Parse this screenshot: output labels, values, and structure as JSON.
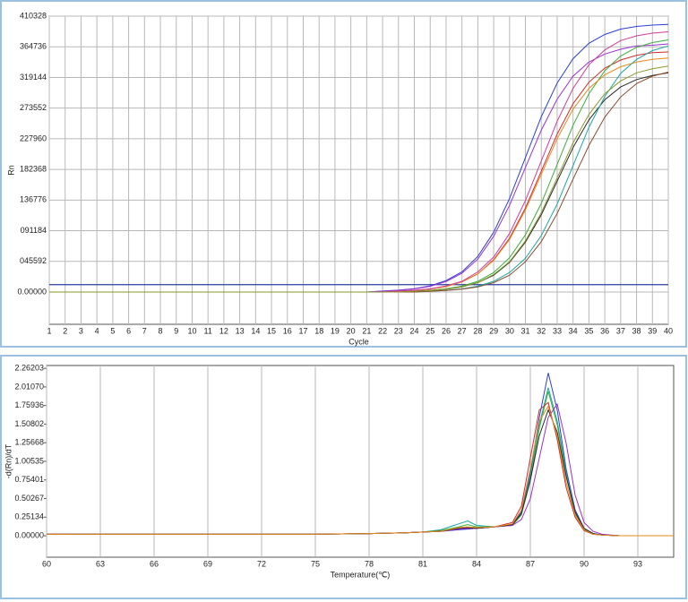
{
  "chart_data": [
    {
      "type": "line",
      "x_label": "Cycle",
      "y_label": "Rn",
      "x": [
        1,
        2,
        3,
        4,
        5,
        6,
        7,
        8,
        9,
        10,
        11,
        12,
        13,
        14,
        15,
        16,
        17,
        18,
        19,
        20,
        21,
        22,
        23,
        24,
        25,
        26,
        27,
        28,
        29,
        30,
        31,
        32,
        33,
        34,
        35,
        36,
        37,
        38,
        39,
        40
      ],
      "xlim": [
        1,
        40
      ],
      "xticks": [
        1,
        2,
        3,
        4,
        5,
        6,
        7,
        8,
        9,
        10,
        11,
        12,
        13,
        14,
        15,
        16,
        17,
        18,
        19,
        20,
        21,
        22,
        23,
        24,
        25,
        26,
        27,
        28,
        29,
        30,
        31,
        32,
        33,
        34,
        35,
        36,
        37,
        38,
        39,
        40
      ],
      "ylim": [
        -48000,
        410328
      ],
      "yticks": [
        {
          "value": 0,
          "label": "0.00000"
        },
        {
          "value": 45592,
          "label": "045592"
        },
        {
          "value": 91184,
          "label": "091184"
        },
        136776,
        182368,
        227960,
        273552,
        319144,
        364736,
        410328
      ],
      "grid": "both",
      "threshold": 11000,
      "threshold_color": "#2a3fa0",
      "series": [
        {
          "color": "#2b3fd6",
          "values": [
            0,
            0,
            0,
            0,
            0,
            0,
            0,
            0,
            0,
            0,
            0,
            0,
            0,
            0,
            0,
            0,
            0,
            0,
            0,
            0,
            0,
            1400,
            2700,
            5000,
            9200,
            17000,
            30000,
            53000,
            89000,
            139000,
            200000,
            261000,
            311000,
            347000,
            370000,
            383000,
            391000,
            395000,
            397000,
            398000
          ]
        },
        {
          "color": "#9b2fd0",
          "values": [
            0,
            0,
            0,
            0,
            0,
            0,
            0,
            0,
            0,
            0,
            0,
            0,
            0,
            0,
            0,
            0,
            0,
            0,
            0,
            0,
            0,
            1300,
            2500,
            4600,
            8500,
            15500,
            28000,
            49000,
            83000,
            129000,
            185000,
            241000,
            287000,
            321000,
            342000,
            354000,
            361000,
            366000,
            367000,
            369000
          ]
        },
        {
          "color": "#d42a2a",
          "values": [
            0,
            0,
            0,
            0,
            0,
            0,
            0,
            0,
            0,
            0,
            0,
            0,
            0,
            0,
            0,
            0,
            0,
            0,
            0,
            0,
            0,
            0,
            1300,
            2400,
            4500,
            8300,
            15000,
            27000,
            48000,
            80000,
            125000,
            180000,
            235000,
            280000,
            312000,
            333000,
            345000,
            352000,
            356000,
            357000
          ]
        },
        {
          "color": "#3cae3c",
          "values": [
            0,
            0,
            0,
            0,
            0,
            0,
            0,
            0,
            0,
            0,
            0,
            0,
            0,
            0,
            0,
            0,
            0,
            0,
            0,
            0,
            0,
            0,
            0,
            1400,
            2500,
            4700,
            8700,
            16000,
            29000,
            51000,
            85000,
            132000,
            190000,
            248000,
            295000,
            329000,
            351000,
            364000,
            371000,
            375000
          ]
        },
        {
          "color": "#2a2a2a",
          "values": [
            0,
            0,
            0,
            0,
            0,
            0,
            0,
            0,
            0,
            0,
            0,
            0,
            0,
            0,
            0,
            0,
            0,
            0,
            0,
            0,
            0,
            0,
            0,
            1200,
            2200,
            4100,
            7600,
            14000,
            25000,
            44000,
            74000,
            115000,
            165000,
            215000,
            256000,
            286000,
            305000,
            316000,
            322000,
            326000
          ]
        },
        {
          "color": "#e88a1a",
          "values": [
            0,
            0,
            0,
            0,
            0,
            0,
            0,
            0,
            0,
            0,
            0,
            0,
            0,
            0,
            0,
            0,
            0,
            0,
            0,
            0,
            0,
            0,
            1300,
            2300,
            4300,
            8000,
            15000,
            27000,
            47000,
            78000,
            122000,
            175000,
            228000,
            272000,
            303000,
            323000,
            335000,
            342000,
            346000,
            348000
          ]
        },
        {
          "color": "#1aa6a6",
          "values": [
            0,
            0,
            0,
            0,
            0,
            0,
            0,
            0,
            0,
            0,
            0,
            0,
            0,
            0,
            0,
            0,
            0,
            0,
            0,
            0,
            0,
            0,
            0,
            0,
            1300,
            2500,
            4600,
            8600,
            16000,
            29000,
            50000,
            84000,
            131000,
            188000,
            245000,
            291000,
            325000,
            346000,
            359000,
            366000
          ]
        },
        {
          "color": "#8a4a2a",
          "values": [
            0,
            0,
            0,
            0,
            0,
            0,
            0,
            0,
            0,
            0,
            0,
            0,
            0,
            0,
            0,
            0,
            0,
            0,
            0,
            0,
            0,
            0,
            0,
            0,
            1200,
            2200,
            4200,
            7700,
            14000,
            25000,
            45000,
            75000,
            117000,
            168000,
            218000,
            260000,
            290000,
            310000,
            321000,
            327000
          ]
        },
        {
          "color": "#d13a9a",
          "values": [
            0,
            0,
            0,
            0,
            0,
            0,
            0,
            0,
            0,
            0,
            0,
            0,
            0,
            0,
            0,
            0,
            0,
            0,
            0,
            0,
            0,
            0,
            1400,
            2600,
            4800,
            9000,
            16000,
            30000,
            52000,
            87000,
            136000,
            195000,
            254000,
            303000,
            338000,
            360000,
            374000,
            381000,
            385000,
            387000
          ]
        },
        {
          "color": "#8a9a2a",
          "values": [
            0,
            0,
            0,
            0,
            0,
            0,
            0,
            0,
            0,
            0,
            0,
            0,
            0,
            0,
            0,
            0,
            0,
            0,
            0,
            0,
            0,
            0,
            0,
            1200,
            2300,
            4300,
            7800,
            14000,
            26000,
            45000,
            76000,
            118000,
            170000,
            222000,
            264000,
            295000,
            314000,
            326000,
            332000,
            336000
          ]
        }
      ]
    },
    {
      "type": "line",
      "x_label": "Temperature(℃)",
      "y_label": "-d(Rn)/dT",
      "x": [
        60,
        65,
        70,
        75,
        78,
        80,
        81,
        82,
        83,
        83.5,
        84,
        85,
        86,
        86.5,
        87,
        87.5,
        88,
        88.5,
        89,
        89.5,
        90,
        90.5,
        91,
        92,
        93,
        95
      ],
      "xlim": [
        60,
        95
      ],
      "xticks": [
        60,
        63,
        66,
        69,
        72,
        75,
        78,
        81,
        84,
        87,
        90,
        93
      ],
      "ylim": [
        -0.29,
        2.3
      ],
      "yticks": [
        {
          "value": 0,
          "label": "0.00000"
        },
        0.25134,
        0.50267,
        0.75401,
        1.00535,
        1.25668,
        1.50802,
        1.75936,
        {
          "value": 2.0107,
          "label": "2.01070"
        },
        2.26203
      ],
      "grid": "x",
      "series": [
        {
          "color": "#2b3fd6",
          "values": [
            0.02,
            0.02,
            0.02,
            0.02,
            0.03,
            0.04,
            0.05,
            0.06,
            0.08,
            0.09,
            0.1,
            0.12,
            0.15,
            0.32,
            0.85,
            1.6,
            2.2,
            1.7,
            0.9,
            0.35,
            0.1,
            0.03,
            0.01,
            0,
            0,
            0
          ]
        },
        {
          "color": "#1aa6a6",
          "values": [
            0.02,
            0.02,
            0.02,
            0.02,
            0.03,
            0.04,
            0.05,
            0.08,
            0.16,
            0.2,
            0.14,
            0.12,
            0.15,
            0.3,
            0.8,
            1.5,
            2.0,
            1.55,
            0.85,
            0.32,
            0.1,
            0.03,
            0.01,
            0,
            0,
            0
          ]
        },
        {
          "color": "#3cae3c",
          "values": [
            0.02,
            0.02,
            0.02,
            0.02,
            0.03,
            0.04,
            0.05,
            0.07,
            0.12,
            0.15,
            0.12,
            0.12,
            0.14,
            0.28,
            0.75,
            1.45,
            1.95,
            1.5,
            0.82,
            0.3,
            0.09,
            0.03,
            0.01,
            0,
            0,
            0
          ]
        },
        {
          "color": "#d42a2a",
          "values": [
            0.02,
            0.02,
            0.02,
            0.02,
            0.03,
            0.04,
            0.05,
            0.06,
            0.09,
            0.1,
            0.1,
            0.12,
            0.18,
            0.4,
            1.05,
            1.7,
            1.8,
            1.3,
            0.65,
            0.25,
            0.07,
            0.02,
            0.01,
            0,
            0,
            0
          ]
        },
        {
          "color": "#9b2fd0",
          "values": [
            0.02,
            0.02,
            0.02,
            0.02,
            0.03,
            0.04,
            0.05,
            0.06,
            0.09,
            0.1,
            0.1,
            0.12,
            0.14,
            0.22,
            0.5,
            1.05,
            1.6,
            1.78,
            1.25,
            0.55,
            0.18,
            0.06,
            0.02,
            0,
            0,
            0
          ]
        },
        {
          "color": "#2a2a2a",
          "values": [
            0.02,
            0.02,
            0.02,
            0.02,
            0.03,
            0.04,
            0.05,
            0.06,
            0.1,
            0.11,
            0.1,
            0.12,
            0.15,
            0.3,
            0.75,
            1.35,
            1.7,
            1.4,
            0.8,
            0.32,
            0.1,
            0.03,
            0.01,
            0,
            0,
            0
          ]
        },
        {
          "color": "#e88a1a",
          "values": [
            0.02,
            0.02,
            0.02,
            0.02,
            0.03,
            0.04,
            0.05,
            0.06,
            0.11,
            0.12,
            0.11,
            0.12,
            0.16,
            0.35,
            0.9,
            1.55,
            1.75,
            1.35,
            0.72,
            0.28,
            0.08,
            0.02,
            0.01,
            0,
            0,
            0
          ]
        }
      ]
    }
  ]
}
